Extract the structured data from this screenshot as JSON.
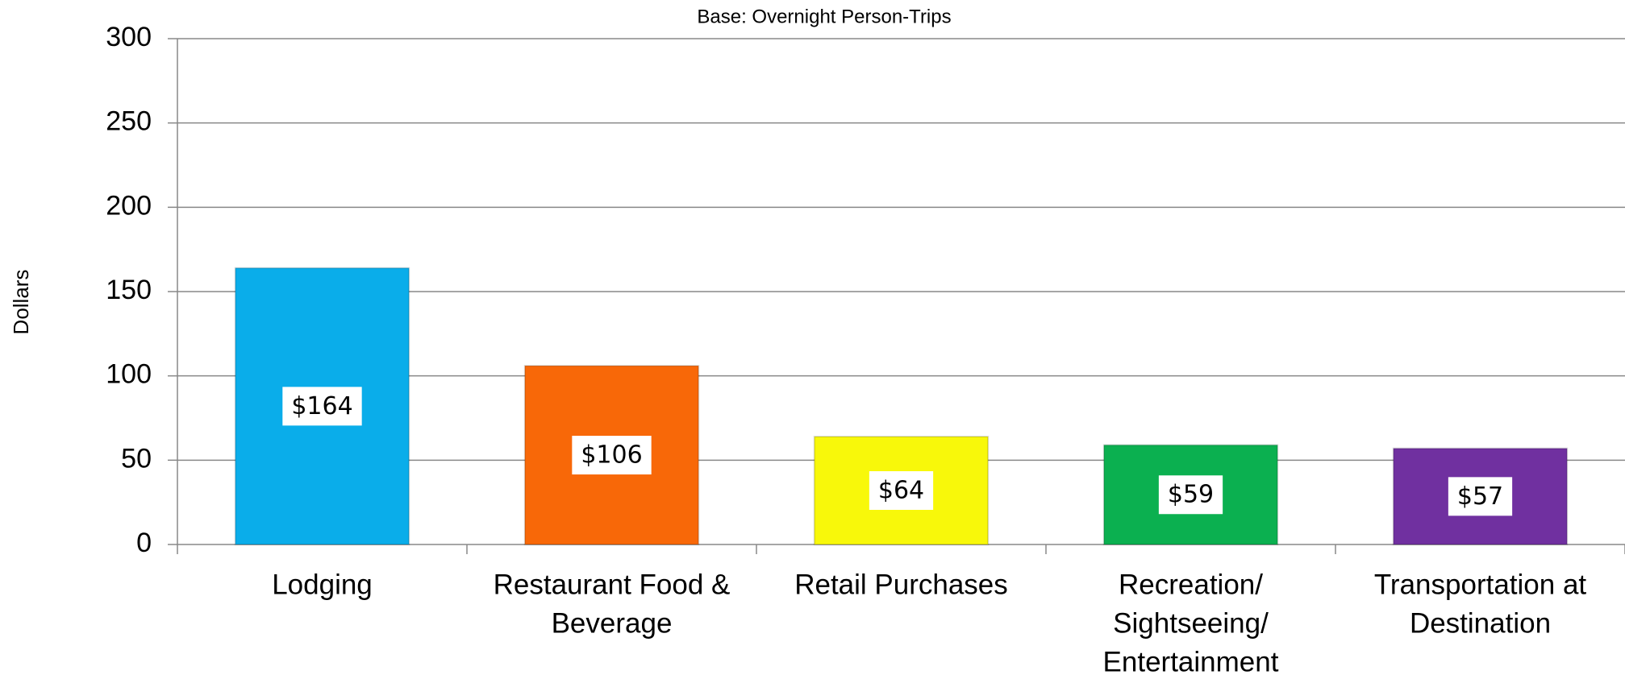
{
  "chart_data": {
    "type": "bar",
    "title": "Base: Overnight Person-Trips",
    "y_label": "Dollars",
    "categories": [
      [
        "Lodging"
      ],
      [
        "Restaurant Food &",
        "Beverage"
      ],
      [
        "Retail Purchases"
      ],
      [
        "Recreation/",
        "Sightseeing/",
        "Entertainment"
      ],
      [
        "Transportation at",
        "Destination"
      ]
    ],
    "values": [
      164,
      106,
      64,
      59,
      57
    ],
    "value_labels": [
      "$164",
      "$106",
      "$64",
      "$59",
      "$57"
    ],
    "colors": [
      "#0aadea",
      "#f86808",
      "#f8f80a",
      "#0bb050",
      "#7030a0"
    ],
    "ylim": [
      0,
      300
    ],
    "yticks": [
      0,
      50,
      100,
      150,
      200,
      250,
      300
    ],
    "grid": true
  }
}
